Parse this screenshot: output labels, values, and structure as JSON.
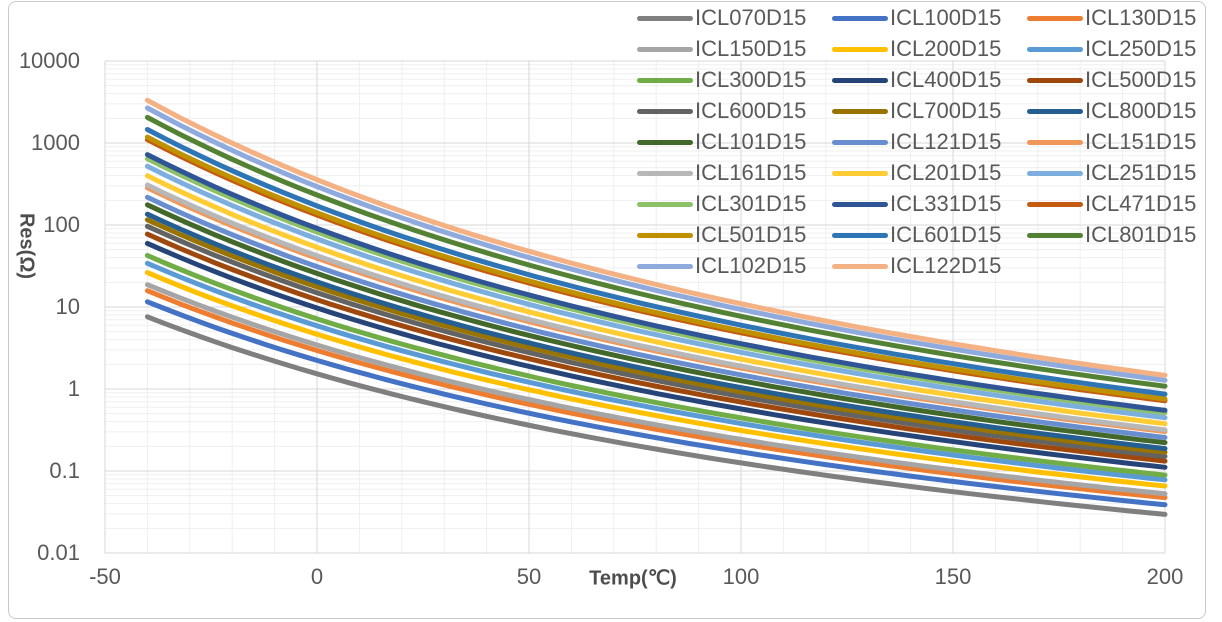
{
  "style": {
    "background": "#FFFFFF",
    "frame_border_color": "#CBC9C7",
    "major_gridline_color": "#D7D7D7",
    "minor_gridline_color": "#EFEFEF",
    "axis_text_color": "#595959",
    "title_text_color": "#4D4D4D"
  },
  "chart_data": {
    "type": "line",
    "title": "",
    "xlabel": "Temp(℃)",
    "ylabel": "Res(Ω)",
    "x_axis": {
      "scale": "linear",
      "min": -50,
      "max": 200,
      "ticks": [
        -50,
        0,
        50,
        100,
        150,
        200
      ],
      "minor_gridline_step": 10
    },
    "y_axis": {
      "scale": "log",
      "min": 0.01,
      "max": 10000,
      "ticks": [
        "10000",
        "1000",
        "100",
        "10",
        "1",
        "0.1",
        "0.01"
      ],
      "minor_gridlines": "log sub-decade (2..9 per decade)"
    },
    "legend": {
      "position": "top-right",
      "columns": 3
    },
    "curve_model": "R(T) = r25_ohm * exp(b_k * (1/(T+273.15) - 1/298.15)), plotted for T = -40..200 °C",
    "x_samples_c": [
      -40,
      0,
      25,
      50,
      100,
      150,
      200
    ],
    "series": [
      {
        "label": "ICL070D15",
        "color": "#7F7F7F",
        "r25_ohm": 0.7,
        "b_k": 2550,
        "values": [
          7.6,
          1.53,
          0.7,
          0.361,
          0.125,
          0.0559,
          0.0296
        ]
      },
      {
        "label": "ICL100D15",
        "color": "#4472C4",
        "r25_ohm": 1.0,
        "b_k": 2620,
        "values": [
          11.6,
          2.24,
          1.0,
          0.507,
          0.171,
          0.0746,
          0.0388
        ]
      },
      {
        "label": "ICL130D15",
        "color": "#ED7D31",
        "r25_ohm": 1.3,
        "b_k": 2670,
        "values": [
          15.8,
          2.95,
          1.3,
          0.65,
          0.215,
          0.0923,
          0.0473
        ]
      },
      {
        "label": "ICL150D15",
        "color": "#A5A5A5",
        "r25_ohm": 1.5,
        "b_k": 2700,
        "values": [
          18.7,
          3.44,
          1.5,
          0.744,
          0.243,
          0.103,
          0.0527
        ]
      },
      {
        "label": "ICL200D15",
        "color": "#FFC000",
        "r25_ohm": 2.0,
        "b_k": 2755,
        "values": [
          26.3,
          4.66,
          2.0,
          0.979,
          0.312,
          0.13,
          0.0656
        ]
      },
      {
        "label": "ICL250D15",
        "color": "#5B9BD5",
        "r25_ohm": 2.5,
        "b_k": 2795,
        "values": [
          34.1,
          5.9,
          2.5,
          1.21,
          0.38,
          0.157,
          0.078
        ]
      },
      {
        "label": "ICL300D15",
        "color": "#70AD47",
        "r25_ohm": 3.0,
        "b_k": 2835,
        "values": [
          42.5,
          7.16,
          3.0,
          1.44,
          0.444,
          0.181,
          0.0891
        ]
      },
      {
        "label": "ICL400D15",
        "color": "#264478",
        "r25_ohm": 4.0,
        "b_k": 2890,
        "values": [
          59.7,
          9.71,
          4.0,
          1.89,
          0.57,
          0.228,
          0.111
        ]
      },
      {
        "label": "ICL500D15",
        "color": "#9E480E",
        "r25_ohm": 5.0,
        "b_k": 2930,
        "values": [
          77.4,
          12.3,
          5.0,
          2.34,
          0.693,
          0.274,
          0.132
        ]
      },
      {
        "label": "ICL600D15",
        "color": "#636363",
        "r25_ohm": 6.0,
        "b_k": 2970,
        "values": [
          96.4,
          14.9,
          6.0,
          2.78,
          0.81,
          0.316,
          0.151
        ]
      },
      {
        "label": "ICL700D15",
        "color": "#997300",
        "r25_ohm": 7.0,
        "b_k": 3000,
        "values": [
          116,
          17.6,
          7.0,
          3.21,
          0.926,
          0.358,
          0.169
        ]
      },
      {
        "label": "ICL800D15",
        "color": "#255E91",
        "r25_ohm": 8.0,
        "b_k": 3025,
        "values": [
          135,
          20.2,
          8.0,
          3.65,
          1.04,
          0.399,
          0.188
        ]
      },
      {
        "label": "ICL101D15",
        "color": "#43682B",
        "r25_ohm": 10,
        "b_k": 3070,
        "values": [
          177,
          25.7,
          10,
          4.51,
          1.26,
          0.477,
          0.222
        ]
      },
      {
        "label": "ICL121D15",
        "color": "#698ED0",
        "r25_ohm": 12,
        "b_k": 3100,
        "values": [
          218,
          31.1,
          12,
          5.37,
          1.48,
          0.556,
          0.256
        ]
      },
      {
        "label": "ICL151D15",
        "color": "#F1975A",
        "r25_ohm": 15,
        "b_k": 3145,
        "values": [
          284,
          39.4,
          15,
          6.63,
          1.8,
          0.664,
          0.303
        ]
      },
      {
        "label": "ICL161D15",
        "color": "#B7B7B7",
        "r25_ohm": 16,
        "b_k": 3160,
        "values": [
          307,
          42.2,
          16,
          7.05,
          1.9,
          0.699,
          0.317
        ]
      },
      {
        "label": "ICL201D15",
        "color": "#FFCD33",
        "r25_ohm": 20,
        "b_k": 3200,
        "values": [
          399,
          53.4,
          20,
          8.72,
          2.31,
          0.84,
          0.378
        ]
      },
      {
        "label": "ICL251D15",
        "color": "#7CAFDD",
        "r25_ohm": 25,
        "b_k": 3245,
        "values": [
          520,
          67.7,
          25,
          10.8,
          2.81,
          1.0,
          0.447
        ]
      },
      {
        "label": "ICL301D15",
        "color": "#8CC168",
        "r25_ohm": 30,
        "b_k": 3280,
        "values": [
          644,
          82.1,
          30,
          12.8,
          3.29,
          1.16,
          0.513
        ]
      },
      {
        "label": "ICL331D15",
        "color": "#2F5597",
        "r25_ohm": 33,
        "b_k": 3300,
        "values": [
          722,
          90.9,
          33,
          14.0,
          3.57,
          1.25,
          0.551
        ]
      },
      {
        "label": "ICL471D15",
        "color": "#C55A11",
        "r25_ohm": 47,
        "b_k": 3370,
        "values": [
          1100,
          132,
          47,
          19.6,
          4.85,
          1.67,
          0.719
        ]
      },
      {
        "label": "ICL501D15",
        "color": "#BF9000",
        "r25_ohm": 50,
        "b_k": 3380,
        "values": [
          1180,
          141,
          50,
          20.8,
          5.12,
          1.76,
          0.755
        ]
      },
      {
        "label": "ICL601D15",
        "color": "#2E75B6",
        "r25_ohm": 60,
        "b_k": 3415,
        "values": [
          1460,
          171,
          60,
          24.7,
          6.0,
          2.03,
          0.868
        ]
      },
      {
        "label": "ICL801D15",
        "color": "#548235",
        "r25_ohm": 80,
        "b_k": 3470,
        "values": [
          2050,
          232,
          80,
          32.5,
          7.71,
          2.57,
          1.08
        ]
      },
      {
        "label": "ICL102D15",
        "color": "#8FAADC",
        "r25_ohm": 100,
        "b_k": 3515,
        "values": [
          2680,
          294,
          100,
          40.2,
          9.35,
          3.07,
          1.28
        ]
      },
      {
        "label": "ICL122D15",
        "color": "#F4B183",
        "r25_ohm": 120,
        "b_k": 3550,
        "values": [
          3320,
          357,
          120,
          47.8,
          11.0,
          3.56,
          1.47
        ]
      }
    ]
  }
}
